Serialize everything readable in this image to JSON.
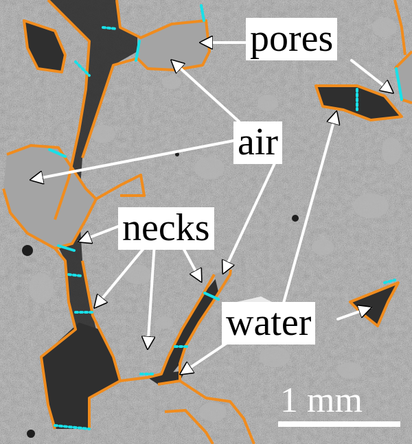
{
  "labels": {
    "pores": "pores",
    "air": "air",
    "necks": "necks",
    "water": "water"
  },
  "scale_bar": {
    "label": "1 mm"
  },
  "colors": {
    "background": "#8d8d8d",
    "pore_outline": "#f08c1e",
    "neck_marker": "#19e0e8",
    "air_fill": "#a4a4a4",
    "water_fill": "#2f2f2f",
    "arrow": "#ffffff",
    "label_background": "#ffffff",
    "label_text": "#000000"
  }
}
